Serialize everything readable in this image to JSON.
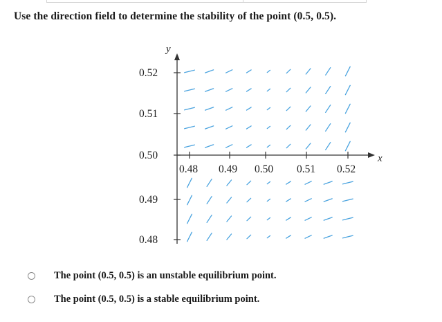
{
  "question": {
    "text": "Use the direction field to determine the stability of the point (0.5, 0.5)."
  },
  "field": {
    "arrow_color": "#4aa3df",
    "axis_color": "#333333",
    "y_axis_label": "y",
    "x_axis_label": "x",
    "y_ticks": [
      "0.52",
      "0.51",
      "0.50",
      "0.49",
      "0.48"
    ],
    "x_ticks": [
      "0.48",
      "0.49",
      "0.50",
      "0.51",
      "0.52"
    ]
  },
  "answers": {
    "options": [
      {
        "label": "The point (0.5, 0.5) is an unstable equilibrium point."
      },
      {
        "label": "The point (0.5, 0.5) is a stable equilibrium point."
      }
    ]
  }
}
